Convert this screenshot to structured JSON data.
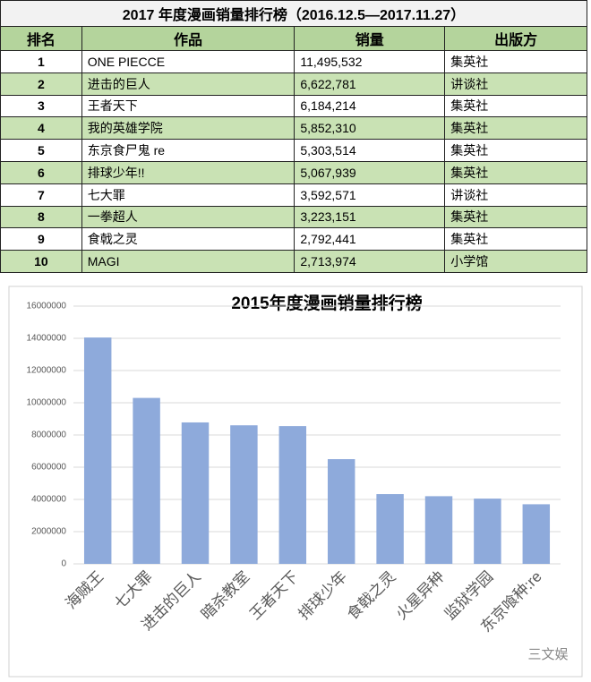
{
  "table": {
    "title": "2017 年度漫画销量排行榜（2016.12.5—2017.11.27）",
    "header": [
      "排名",
      "作品",
      "销量",
      "出版方"
    ],
    "rows": [
      [
        "1",
        "ONE PIECCE",
        "11,495,532",
        "集英社"
      ],
      [
        "2",
        "进击的巨人",
        "6,622,781",
        "讲谈社"
      ],
      [
        "3",
        "王者天下",
        "6,184,214",
        "集英社"
      ],
      [
        "4",
        "我的英雄学院",
        "5,852,310",
        "集英社"
      ],
      [
        "5",
        "东京食尸鬼 re",
        "5,303,514",
        "集英社"
      ],
      [
        "6",
        "排球少年!!",
        "5,067,939",
        "集英社"
      ],
      [
        "7",
        "七大罪",
        "3,592,571",
        "讲谈社"
      ],
      [
        "8",
        "一拳超人",
        "3,223,151",
        "集英社"
      ],
      [
        "9",
        "食戟之灵",
        "2,792,441",
        "集英社"
      ],
      [
        "10",
        "MAGI",
        "2,713,974",
        "小学馆"
      ]
    ]
  },
  "chart_data": {
    "type": "bar",
    "title": "2015年度漫画销量排行榜",
    "categories": [
      "海贼王",
      "七大罪",
      "进击的巨人",
      "暗杀教室",
      "王者天下",
      "排球少年",
      "食戟之灵",
      "火星异种",
      "监狱学园",
      "东京喰种:re"
    ],
    "values": [
      14050000,
      10300000,
      8780000,
      8600000,
      8550000,
      6500000,
      4330000,
      4200000,
      4050000,
      3700000
    ],
    "color": "#8eaadb",
    "ylim": [
      0,
      16000000
    ],
    "yticks": [
      0,
      2000000,
      4000000,
      6000000,
      8000000,
      10000000,
      12000000,
      14000000,
      16000000
    ],
    "grid": true
  },
  "watermark": "三文娱"
}
